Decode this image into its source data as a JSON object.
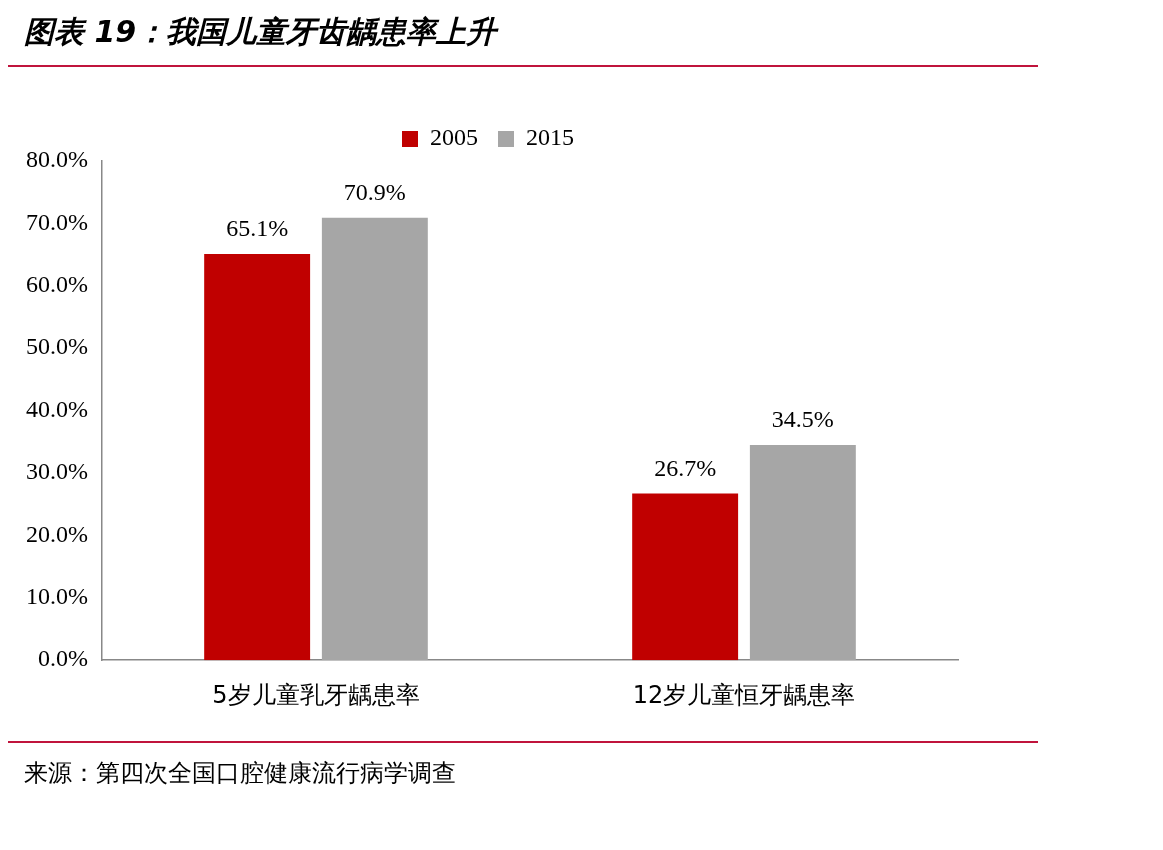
{
  "chart_data": {
    "type": "bar",
    "title": "图表 19：我国儿童牙齿龋患率上升",
    "categories": [
      "5岁儿童乳牙龋患率",
      "12岁儿童恒牙龋患率"
    ],
    "series": [
      {
        "name": "2005",
        "color": "#c00000",
        "values": [
          65.1,
          26.7
        ],
        "value_labels": [
          "65.1%",
          "26.7%"
        ]
      },
      {
        "name": "2015",
        "color": "#a6a6a6",
        "values": [
          70.9,
          34.5
        ],
        "value_labels": [
          "70.9%",
          "34.5%"
        ]
      }
    ],
    "ylim": [
      0,
      80
    ],
    "yticks": [
      {
        "value": 0,
        "label": "0.0%"
      },
      {
        "value": 10,
        "label": "10.0%"
      },
      {
        "value": 20,
        "label": "20.0%"
      },
      {
        "value": 30,
        "label": "30.0%"
      },
      {
        "value": 40,
        "label": "40.0%"
      },
      {
        "value": 50,
        "label": "50.0%"
      },
      {
        "value": 60,
        "label": "60.0%"
      },
      {
        "value": 70,
        "label": "70.0%"
      },
      {
        "value": 80,
        "label": "80.0%"
      }
    ],
    "grid": false,
    "legend": "top",
    "annotations": [
      "来源：第四次全国口腔健康流行病学调查"
    ]
  }
}
